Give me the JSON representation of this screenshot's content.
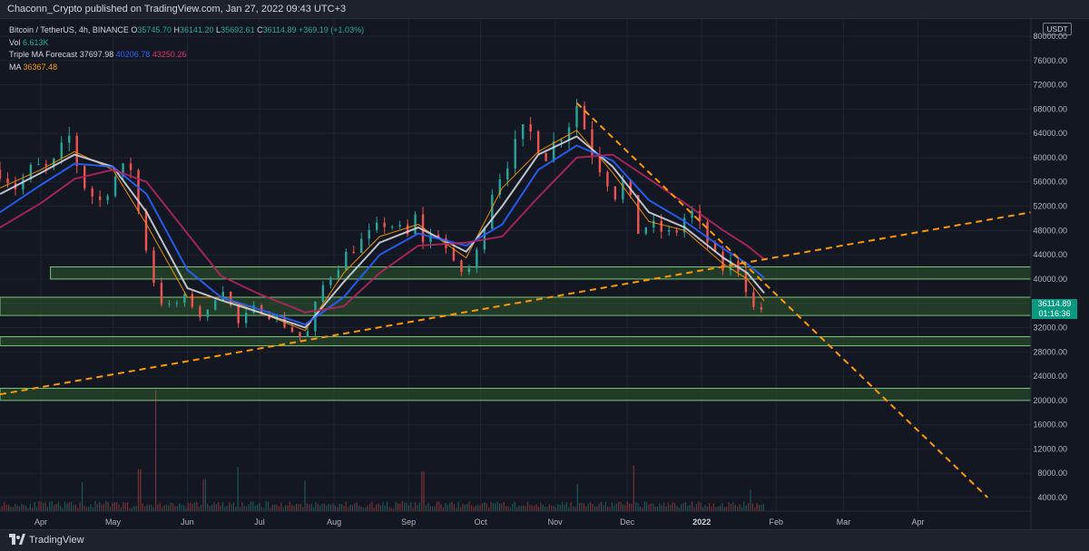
{
  "header": {
    "published_text": "Chaconn_Crypto published on TradingView.com, Jan 27, 2022 09:43 UTC+3"
  },
  "legend": {
    "symbol_line": "Bitcoin / TetherUS, 4h, BINANCE",
    "open_label": "O",
    "open_value": "35745.70",
    "high_label": "H",
    "high_value": "36141.20",
    "low_label": "L",
    "low_value": "35692.61",
    "close_label": "C",
    "close_value": "36114.89",
    "change": "+369.19 (+1.03%)",
    "vol_label": "Vol",
    "vol_value": "6.613K",
    "tma_label": "Triple MA Forecast",
    "tma_v1": "37697.98",
    "tma_v2": "40206.78",
    "tma_v3": "43250.26",
    "ma_label": "MA",
    "ma_value": "36367.48"
  },
  "axis": {
    "currency": "USDT",
    "price_tag": "36114.89",
    "countdown": "01:16:36"
  },
  "footer": {
    "brand": "TradingView"
  },
  "colors": {
    "background": "#131722",
    "up": "#26a69a",
    "down": "#ef5350",
    "ma_fast": "#ff9800",
    "ma_white": "#d1d4dc",
    "ma_blue": "#2962ff",
    "ma_red": "#b2255d",
    "zone_fill": "#2e5a2e",
    "zone_border": "#7ac47a",
    "trend": "#ff9800",
    "price_tag": "#089981"
  },
  "chart_data": {
    "type": "line",
    "scale": "log",
    "x_ticks": [
      "Apr",
      "May",
      "Jun",
      "Jul",
      "Aug",
      "Sep",
      "Oct",
      "Nov",
      "Dec",
      "2022",
      "Feb",
      "Mar",
      "Apr"
    ],
    "x_tick_dates": [
      "2021-04-01",
      "2021-05-01",
      "2021-06-01",
      "2021-07-01",
      "2021-08-01",
      "2021-09-01",
      "2021-10-01",
      "2021-11-01",
      "2021-12-01",
      "2022-01-01",
      "2022-02-01",
      "2022-03-01",
      "2022-04-01"
    ],
    "xlim": [
      "2021-03-15",
      "2022-05-18"
    ],
    "y_ticks": [
      "80000.00",
      "76000.00",
      "72000.00",
      "68000.00",
      "64000.00",
      "60000.00",
      "56000.00",
      "52000.00",
      "48000.00",
      "44000.00",
      "40000.00",
      "36000.00",
      "32000.00",
      "28000.00",
      "24000.00",
      "20000.00",
      "16000.00",
      "12000.00",
      "8000.00",
      "4000.00"
    ],
    "ylim": [
      2000,
      82000
    ],
    "series": [
      {
        "name": "BTCUSDT price",
        "x": [
          "2021-03-15",
          "2021-03-22",
          "2021-03-29",
          "2021-04-05",
          "2021-04-13",
          "2021-04-18",
          "2021-04-25",
          "2021-05-03",
          "2021-05-09",
          "2021-05-12",
          "2021-05-19",
          "2021-05-23",
          "2021-06-01",
          "2021-06-08",
          "2021-06-15",
          "2021-06-22",
          "2021-06-30",
          "2021-07-08",
          "2021-07-20",
          "2021-07-26",
          "2021-07-30",
          "2021-08-07",
          "2021-08-15",
          "2021-08-23",
          "2021-09-01",
          "2021-09-06",
          "2021-09-07",
          "2021-09-14",
          "2021-09-21",
          "2021-09-28",
          "2021-10-06",
          "2021-10-15",
          "2021-10-20",
          "2021-10-28",
          "2021-11-08",
          "2021-11-10",
          "2021-11-17",
          "2021-11-26",
          "2021-12-01",
          "2021-12-04",
          "2021-12-10",
          "2021-12-20",
          "2021-12-27",
          "2022-01-03",
          "2022-01-09",
          "2022-01-15",
          "2022-01-21",
          "2022-01-24",
          "2022-01-27"
        ],
        "y": [
          58000,
          55000,
          58500,
          58000,
          63500,
          56000,
          52500,
          57500,
          58500,
          50000,
          38000,
          35000,
          37000,
          33000,
          39500,
          32500,
          35500,
          33500,
          29800,
          38000,
          40500,
          44500,
          47000,
          49500,
          47000,
          52500,
          46500,
          47500,
          41000,
          42000,
          55000,
          61500,
          65000,
          60500,
          66500,
          68800,
          60500,
          54000,
          57000,
          47500,
          49000,
          47000,
          51500,
          46500,
          41500,
          43000,
          37000,
          33500,
          36114.89
        ]
      },
      {
        "name": "MA",
        "x": [
          "2021-03-15",
          "2021-04-01",
          "2021-04-15",
          "2021-05-01",
          "2021-05-15",
          "2021-06-01",
          "2021-06-15",
          "2021-07-01",
          "2021-07-20",
          "2021-08-05",
          "2021-08-20",
          "2021-09-05",
          "2021-09-25",
          "2021-10-10",
          "2021-10-25",
          "2021-11-10",
          "2021-11-25",
          "2021-12-10",
          "2021-12-25",
          "2022-01-10",
          "2022-01-20",
          "2022-01-27"
        ],
        "y": [
          55000,
          58000,
          61000,
          58000,
          49000,
          37000,
          37000,
          34500,
          31500,
          41000,
          47000,
          49000,
          43500,
          55000,
          61000,
          64500,
          57500,
          49500,
          48000,
          42500,
          40000,
          36367.48
        ]
      },
      {
        "name": "Triple MA Forecast fast",
        "x": [
          "2021-03-15",
          "2021-04-01",
          "2021-04-15",
          "2021-05-01",
          "2021-05-15",
          "2021-06-01",
          "2021-06-15",
          "2021-07-01",
          "2021-07-20",
          "2021-08-05",
          "2021-08-20",
          "2021-09-05",
          "2021-09-25",
          "2021-10-10",
          "2021-10-25",
          "2021-11-10",
          "2021-11-25",
          "2021-12-10",
          "2021-12-25",
          "2022-01-10",
          "2022-01-20",
          "2022-01-27"
        ],
        "y": [
          54000,
          57500,
          60500,
          58500,
          51000,
          38500,
          36500,
          34500,
          32000,
          39500,
          46000,
          48500,
          44500,
          52000,
          60500,
          63500,
          58500,
          51000,
          48500,
          43500,
          41000,
          37697.98
        ]
      },
      {
        "name": "Triple MA Forecast mid",
        "x": [
          "2021-03-15",
          "2021-04-01",
          "2021-04-15",
          "2021-05-01",
          "2021-05-15",
          "2021-06-01",
          "2021-06-15",
          "2021-07-01",
          "2021-07-20",
          "2021-08-05",
          "2021-08-20",
          "2021-09-05",
          "2021-09-25",
          "2021-10-10",
          "2021-10-25",
          "2021-11-10",
          "2021-11-25",
          "2021-12-10",
          "2021-12-25",
          "2022-01-10",
          "2022-01-20",
          "2022-01-27"
        ],
        "y": [
          51000,
          55500,
          59000,
          58500,
          54000,
          41500,
          37000,
          35000,
          32500,
          37000,
          44000,
          47500,
          45500,
          49000,
          58000,
          62000,
          59500,
          53000,
          49500,
          45000,
          42500,
          40206.78
        ]
      },
      {
        "name": "Triple MA Forecast slow",
        "x": [
          "2021-03-15",
          "2021-04-01",
          "2021-04-15",
          "2021-05-01",
          "2021-05-15",
          "2021-06-01",
          "2021-06-15",
          "2021-07-01",
          "2021-07-20",
          "2021-08-05",
          "2021-08-20",
          "2021-09-05",
          "2021-09-25",
          "2021-10-10",
          "2021-10-25",
          "2021-11-10",
          "2021-11-25",
          "2021-12-10",
          "2021-12-25",
          "2022-01-10",
          "2022-01-20",
          "2022-01-27"
        ],
        "y": [
          48500,
          52500,
          56500,
          58000,
          56000,
          47500,
          40500,
          37500,
          34500,
          35500,
          41000,
          45500,
          46000,
          47000,
          53500,
          60000,
          60500,
          56500,
          52500,
          48000,
          45500,
          43250.26
        ]
      }
    ],
    "zones": [
      {
        "from_date": "2021-04-05",
        "to_date": "2022-05-18",
        "y_low": 40000,
        "y_high": 42000
      },
      {
        "from_date": "2021-03-15",
        "to_date": "2022-05-18",
        "y_low": 34000,
        "y_high": 37000
      },
      {
        "from_date": "2021-03-15",
        "to_date": "2022-05-18",
        "y_low": 29000,
        "y_high": 30500
      },
      {
        "from_date": "2021-03-15",
        "to_date": "2022-05-18",
        "y_low": 20000,
        "y_high": 22000
      }
    ],
    "trendlines": [
      {
        "from": [
          "2021-03-15",
          21000
        ],
        "to": [
          "2022-05-18",
          51000
        ]
      },
      {
        "from": [
          "2021-11-10",
          69000
        ],
        "to": [
          "2022-04-30",
          4000
        ]
      }
    ],
    "volume": {
      "max": 160000,
      "spikes": [
        [
          "2021-05-19",
          158000
        ],
        [
          "2021-05-12",
          55000
        ],
        [
          "2021-06-22",
          58000
        ],
        [
          "2021-07-20",
          40000
        ],
        [
          "2021-09-07",
          52000
        ],
        [
          "2021-12-04",
          60000
        ],
        [
          "2021-11-10",
          35000
        ],
        [
          "2022-01-21",
          28000
        ],
        [
          "2021-06-08",
          42000
        ],
        [
          "2021-04-18",
          38000
        ]
      ]
    }
  }
}
